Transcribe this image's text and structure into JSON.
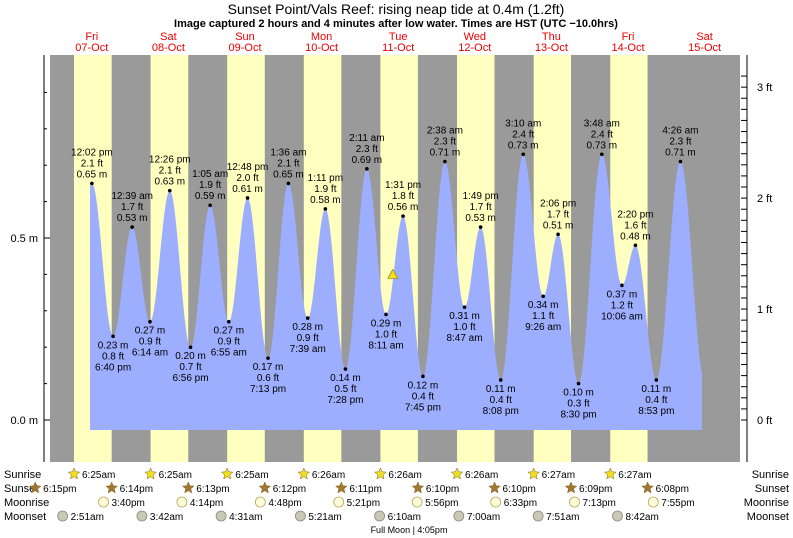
{
  "header": {
    "title": "Sunset Point/Vals Reef: rising  neap tide at 0.4m (1.2ft)",
    "subtitle": "Image captured 2 hours and 4 minutes after low water. Times are HST (UTC −10.0hrs)"
  },
  "colors": {
    "day_band": "#ffffc0",
    "night_band": "#9a9a9a",
    "tide_fill": "#9daeff",
    "day_label": "#ee0000",
    "sun_star": "#f0e020",
    "sunset_star": "#a07830"
  },
  "day_labels": [
    {
      "day": "Fri",
      "date": "07-Oct"
    },
    {
      "day": "Sat",
      "date": "08-Oct"
    },
    {
      "day": "Sun",
      "date": "09-Oct"
    },
    {
      "day": "Mon",
      "date": "10-Oct"
    },
    {
      "day": "Tue",
      "date": "11-Oct"
    },
    {
      "day": "Wed",
      "date": "12-Oct"
    },
    {
      "day": "Thu",
      "date": "13-Oct"
    },
    {
      "day": "Fri",
      "date": "14-Oct"
    },
    {
      "day": "Sat",
      "date": "15-Oct"
    }
  ],
  "chart_data": {
    "type": "area",
    "x_unit": "day index (0 = 07-Oct 00:00 HST)",
    "y_unit": "m",
    "ylim_m": [
      -0.03,
      0.95
    ],
    "left_axis_ticks": [
      {
        "value": 0.0,
        "label": "0.0 m"
      },
      {
        "value": 0.5,
        "label": "0.5 m"
      }
    ],
    "right_axis_ticks": [
      {
        "value": 0,
        "label": "0 ft"
      },
      {
        "value": 1,
        "label": "1 ft"
      },
      {
        "value": 2,
        "label": "2 ft"
      },
      {
        "value": 3,
        "label": "3 ft"
      }
    ],
    "tides": [
      {
        "time": "12:02 pm",
        "day": 0,
        "hours": 12.03,
        "m": 0.65,
        "m_label": "0.65 m",
        "ft_label": "2.1 ft",
        "kind": "high"
      },
      {
        "time": "6:40 pm",
        "day": 0,
        "hours": 18.67,
        "m": 0.23,
        "m_label": "0.23 m",
        "ft_label": "0.8 ft",
        "kind": "low"
      },
      {
        "time": "12:39 am",
        "day": 1,
        "hours": 0.65,
        "m": 0.53,
        "m_label": "0.53 m",
        "ft_label": "1.7 ft",
        "kind": "high"
      },
      {
        "time": "6:14 am",
        "day": 1,
        "hours": 6.23,
        "m": 0.27,
        "m_label": "0.27 m",
        "ft_label": "0.9 ft",
        "kind": "low"
      },
      {
        "time": "12:26 pm",
        "day": 1,
        "hours": 12.43,
        "m": 0.63,
        "m_label": "0.63 m",
        "ft_label": "2.1 ft",
        "kind": "high"
      },
      {
        "time": "6:56 pm",
        "day": 1,
        "hours": 18.93,
        "m": 0.2,
        "m_label": "0.20 m",
        "ft_label": "0.7 ft",
        "kind": "low"
      },
      {
        "time": "1:05 am",
        "day": 2,
        "hours": 1.08,
        "m": 0.59,
        "m_label": "0.59 m",
        "ft_label": "1.9 ft",
        "kind": "high"
      },
      {
        "time": "6:55 am",
        "day": 2,
        "hours": 6.92,
        "m": 0.27,
        "m_label": "0.27 m",
        "ft_label": "0.9 ft",
        "kind": "low"
      },
      {
        "time": "12:48 pm",
        "day": 2,
        "hours": 12.8,
        "m": 0.61,
        "m_label": "0.61 m",
        "ft_label": "2.0 ft",
        "kind": "high"
      },
      {
        "time": "7:13 pm",
        "day": 2,
        "hours": 19.22,
        "m": 0.17,
        "m_label": "0.17 m",
        "ft_label": "0.6 ft",
        "kind": "low"
      },
      {
        "time": "1:36 am",
        "day": 3,
        "hours": 1.6,
        "m": 0.65,
        "m_label": "0.65 m",
        "ft_label": "2.1 ft",
        "kind": "high"
      },
      {
        "time": "7:39 am",
        "day": 3,
        "hours": 7.65,
        "m": 0.28,
        "m_label": "0.28 m",
        "ft_label": "0.9 ft",
        "kind": "low"
      },
      {
        "time": "1:11 pm",
        "day": 3,
        "hours": 13.18,
        "m": 0.58,
        "m_label": "0.58 m",
        "ft_label": "1.9 ft",
        "kind": "high"
      },
      {
        "time": "7:28 pm",
        "day": 3,
        "hours": 19.47,
        "m": 0.14,
        "m_label": "0.14 m",
        "ft_label": "0.5 ft",
        "kind": "low"
      },
      {
        "time": "2:11 am",
        "day": 4,
        "hours": 2.18,
        "m": 0.69,
        "m_label": "0.69 m",
        "ft_label": "2.3 ft",
        "kind": "high"
      },
      {
        "time": "8:11 am",
        "day": 4,
        "hours": 8.18,
        "m": 0.29,
        "m_label": "0.29 m",
        "ft_label": "1.0 ft",
        "kind": "low"
      },
      {
        "time": "1:31 pm",
        "day": 4,
        "hours": 13.52,
        "m": 0.56,
        "m_label": "0.56 m",
        "ft_label": "1.8 ft",
        "kind": "high"
      },
      {
        "time": "7:45 pm",
        "day": 4,
        "hours": 19.75,
        "m": 0.12,
        "m_label": "0.12 m",
        "ft_label": "0.4 ft",
        "kind": "low"
      },
      {
        "time": "2:38 am",
        "day": 5,
        "hours": 2.63,
        "m": 0.71,
        "m_label": "0.71 m",
        "ft_label": "2.3 ft",
        "kind": "high"
      },
      {
        "time": "8:47 am",
        "day": 5,
        "hours": 8.78,
        "m": 0.31,
        "m_label": "0.31 m",
        "ft_label": "1.0 ft",
        "kind": "low"
      },
      {
        "time": "1:49 pm",
        "day": 5,
        "hours": 13.82,
        "m": 0.53,
        "m_label": "0.53 m",
        "ft_label": "1.7 ft",
        "kind": "high"
      },
      {
        "time": "8:08 pm",
        "day": 5,
        "hours": 20.13,
        "m": 0.11,
        "m_label": "0.11 m",
        "ft_label": "0.4 ft",
        "kind": "low"
      },
      {
        "time": "3:10 am",
        "day": 6,
        "hours": 3.17,
        "m": 0.73,
        "m_label": "0.73 m",
        "ft_label": "2.4 ft",
        "kind": "high"
      },
      {
        "time": "9:26 am",
        "day": 6,
        "hours": 9.43,
        "m": 0.34,
        "m_label": "0.34 m",
        "ft_label": "1.1 ft",
        "kind": "low"
      },
      {
        "time": "2:06 pm",
        "day": 6,
        "hours": 14.1,
        "m": 0.51,
        "m_label": "0.51 m",
        "ft_label": "1.7 ft",
        "kind": "high"
      },
      {
        "time": "8:30 pm",
        "day": 6,
        "hours": 20.5,
        "m": 0.1,
        "m_label": "0.10 m",
        "ft_label": "0.3 ft",
        "kind": "low"
      },
      {
        "time": "3:48 am",
        "day": 7,
        "hours": 3.8,
        "m": 0.73,
        "m_label": "0.73 m",
        "ft_label": "2.4 ft",
        "kind": "high"
      },
      {
        "time": "10:06 am",
        "day": 7,
        "hours": 10.1,
        "m": 0.37,
        "m_label": "0.37 m",
        "ft_label": "1.2 ft",
        "kind": "low"
      },
      {
        "time": "2:20 pm",
        "day": 7,
        "hours": 14.33,
        "m": 0.48,
        "m_label": "0.48 m",
        "ft_label": "1.6 ft",
        "kind": "high"
      },
      {
        "time": "8:53 pm",
        "day": 7,
        "hours": 20.88,
        "m": 0.11,
        "m_label": "0.11 m",
        "ft_label": "0.4 ft",
        "kind": "low"
      },
      {
        "time": "4:26 am",
        "day": 8,
        "hours": 4.43,
        "m": 0.71,
        "m_label": "0.71 m",
        "ft_label": "2.3 ft",
        "kind": "high"
      }
    ],
    "current": {
      "day": 4,
      "hours": 10.3,
      "m": 0.4
    }
  },
  "astro": {
    "labels": {
      "sunrise": "Sunrise",
      "sunset": "Sunset",
      "moonrise": "Moonrise",
      "moonset": "Moonset"
    },
    "sunrise": [
      {
        "day": 0,
        "hours": 6.42,
        "time": "6:25am"
      },
      {
        "day": 1,
        "hours": 6.42,
        "time": "6:25am"
      },
      {
        "day": 2,
        "hours": 6.42,
        "time": "6:25am"
      },
      {
        "day": 3,
        "hours": 6.43,
        "time": "6:26am"
      },
      {
        "day": 4,
        "hours": 6.43,
        "time": "6:26am"
      },
      {
        "day": 5,
        "hours": 6.43,
        "time": "6:26am"
      },
      {
        "day": 6,
        "hours": 6.45,
        "time": "6:27am"
      },
      {
        "day": 7,
        "hours": 6.45,
        "time": "6:27am"
      }
    ],
    "sunset": [
      {
        "day": -1,
        "hours": 18.25,
        "time": "6:15pm"
      },
      {
        "day": 0,
        "hours": 18.23,
        "time": "6:14pm"
      },
      {
        "day": 1,
        "hours": 18.22,
        "time": "6:13pm"
      },
      {
        "day": 2,
        "hours": 18.2,
        "time": "6:12pm"
      },
      {
        "day": 3,
        "hours": 18.18,
        "time": "6:11pm"
      },
      {
        "day": 4,
        "hours": 18.17,
        "time": "6:10pm"
      },
      {
        "day": 5,
        "hours": 18.17,
        "time": "6:10pm"
      },
      {
        "day": 6,
        "hours": 18.15,
        "time": "6:09pm"
      },
      {
        "day": 7,
        "hours": 18.13,
        "time": "6:08pm"
      }
    ],
    "moonrise": [
      {
        "day": 0,
        "hours": 15.67,
        "time": "3:40pm"
      },
      {
        "day": 1,
        "hours": 16.23,
        "time": "4:14pm"
      },
      {
        "day": 2,
        "hours": 16.8,
        "time": "4:48pm"
      },
      {
        "day": 3,
        "hours": 17.35,
        "time": "5:21pm"
      },
      {
        "day": 4,
        "hours": 17.93,
        "time": "5:56pm"
      },
      {
        "day": 5,
        "hours": 18.55,
        "time": "6:33pm"
      },
      {
        "day": 6,
        "hours": 19.22,
        "time": "7:13pm"
      },
      {
        "day": 7,
        "hours": 19.92,
        "time": "7:55pm"
      }
    ],
    "moonset": [
      {
        "day": 0,
        "hours": 2.85,
        "time": "2:51am"
      },
      {
        "day": 1,
        "hours": 3.7,
        "time": "3:42am"
      },
      {
        "day": 2,
        "hours": 4.52,
        "time": "4:31am"
      },
      {
        "day": 3,
        "hours": 5.35,
        "time": "5:21am"
      },
      {
        "day": 4,
        "hours": 6.17,
        "time": "6:10am"
      },
      {
        "day": 5,
        "hours": 7.0,
        "time": "7:00am"
      },
      {
        "day": 6,
        "hours": 7.85,
        "time": "7:51am"
      },
      {
        "day": 7,
        "hours": 8.7,
        "time": "8:42am"
      }
    ],
    "full_moon": {
      "day": 4,
      "hours": 16.08,
      "label": "Full Moon | 4:05pm"
    }
  }
}
